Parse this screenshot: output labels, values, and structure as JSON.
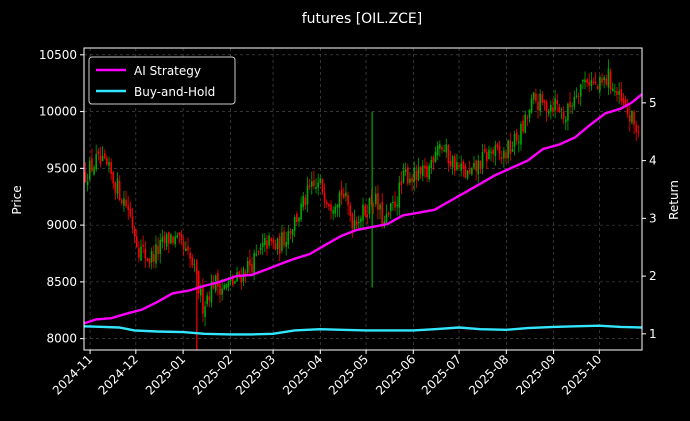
{
  "chart_data": {
    "type": "line",
    "title": "futures [OIL.ZCE]",
    "ylabel": "Price",
    "y2label": "Return",
    "ylim": [
      7900,
      10560
    ],
    "y2lim": [
      0.72,
      5.95
    ],
    "xlim": [
      "2024-10-28",
      "2025-10-29"
    ],
    "yticks": [
      8000,
      8500,
      9000,
      9500,
      10000,
      10500
    ],
    "y2ticks": [
      1,
      2,
      3,
      4,
      5
    ],
    "xticks": [
      "2024-11",
      "2024-12",
      "2025-01",
      "2025-02",
      "2025-03",
      "2025-04",
      "2025-05",
      "2025-06",
      "2025-07",
      "2025-08",
      "2025-09",
      "2025-10"
    ],
    "grid": true,
    "legend_position": "top-left",
    "colors": {
      "up": "#00aa00",
      "down": "#ff0000",
      "strategy": "#ff00ff",
      "buyhold": "#33e5ff",
      "background": "#000000"
    },
    "price_series": [
      {
        "date": "2024-10-29",
        "close": 9450
      },
      {
        "date": "2024-11-05",
        "close": 9560
      },
      {
        "date": "2024-11-12",
        "close": 9500
      },
      {
        "date": "2024-11-19",
        "close": 9330
      },
      {
        "date": "2024-11-26",
        "close": 9150
      },
      {
        "date": "2024-12-03",
        "close": 8800
      },
      {
        "date": "2024-12-10",
        "close": 8700
      },
      {
        "date": "2024-12-17",
        "close": 8800
      },
      {
        "date": "2024-12-24",
        "close": 8900
      },
      {
        "date": "2024-12-31",
        "close": 8800
      },
      {
        "date": "2025-01-07",
        "close": 8650
      },
      {
        "date": "2025-01-14",
        "close": 8300
      },
      {
        "date": "2025-01-21",
        "close": 8500
      },
      {
        "date": "2025-01-28",
        "close": 8450
      },
      {
        "date": "2025-02-04",
        "close": 8500
      },
      {
        "date": "2025-02-11",
        "close": 8620
      },
      {
        "date": "2025-02-18",
        "close": 8700
      },
      {
        "date": "2025-02-25",
        "close": 8850
      },
      {
        "date": "2025-03-04",
        "close": 8800
      },
      {
        "date": "2025-03-11",
        "close": 8950
      },
      {
        "date": "2025-03-18",
        "close": 9100
      },
      {
        "date": "2025-03-25",
        "close": 9300
      },
      {
        "date": "2025-04-01",
        "close": 9350
      },
      {
        "date": "2025-04-08",
        "close": 9200
      },
      {
        "date": "2025-04-15",
        "close": 9300
      },
      {
        "date": "2025-04-22",
        "close": 9050
      },
      {
        "date": "2025-04-29",
        "close": 9100
      },
      {
        "date": "2025-05-06",
        "close": 9250
      },
      {
        "date": "2025-05-13",
        "close": 9000
      },
      {
        "date": "2025-05-20",
        "close": 9200
      },
      {
        "date": "2025-05-27",
        "close": 9450
      },
      {
        "date": "2025-06-03",
        "close": 9420
      },
      {
        "date": "2025-06-10",
        "close": 9450
      },
      {
        "date": "2025-06-17",
        "close": 9750
      },
      {
        "date": "2025-06-24",
        "close": 9600
      },
      {
        "date": "2025-07-01",
        "close": 9500
      },
      {
        "date": "2025-07-08",
        "close": 9420
      },
      {
        "date": "2025-07-15",
        "close": 9550
      },
      {
        "date": "2025-07-22",
        "close": 9650
      },
      {
        "date": "2025-07-29",
        "close": 9600
      },
      {
        "date": "2025-08-05",
        "close": 9700
      },
      {
        "date": "2025-08-12",
        "close": 9850
      },
      {
        "date": "2025-08-19",
        "close": 10100
      },
      {
        "date": "2025-08-26",
        "close": 10050
      },
      {
        "date": "2025-09-02",
        "close": 10080
      },
      {
        "date": "2025-09-09",
        "close": 9950
      },
      {
        "date": "2025-09-16",
        "close": 10200
      },
      {
        "date": "2025-09-23",
        "close": 10300
      },
      {
        "date": "2025-09-30",
        "close": 10200
      },
      {
        "date": "2025-10-07",
        "close": 10300
      },
      {
        "date": "2025-10-14",
        "close": 10100
      },
      {
        "date": "2025-10-21",
        "close": 9950
      },
      {
        "date": "2025-10-28",
        "close": 9800
      }
    ],
    "series": [
      {
        "name": "AI Strategy",
        "axis": "right",
        "points": [
          [
            "2024-10-28",
            1.18
          ],
          [
            "2024-11-05",
            1.25
          ],
          [
            "2024-11-15",
            1.27
          ],
          [
            "2024-11-25",
            1.35
          ],
          [
            "2024-12-05",
            1.42
          ],
          [
            "2024-12-15",
            1.55
          ],
          [
            "2024-12-25",
            1.7
          ],
          [
            "2025-01-05",
            1.75
          ],
          [
            "2025-01-15",
            1.83
          ],
          [
            "2025-01-25",
            1.9
          ],
          [
            "2025-02-05",
            2.0
          ],
          [
            "2025-02-15",
            2.02
          ],
          [
            "2025-02-25",
            2.12
          ],
          [
            "2025-03-05",
            2.2
          ],
          [
            "2025-03-15",
            2.3
          ],
          [
            "2025-03-25",
            2.38
          ],
          [
            "2025-04-05",
            2.55
          ],
          [
            "2025-04-15",
            2.7
          ],
          [
            "2025-04-25",
            2.8
          ],
          [
            "2025-05-05",
            2.85
          ],
          [
            "2025-05-15",
            2.9
          ],
          [
            "2025-05-25",
            3.05
          ],
          [
            "2025-06-05",
            3.1
          ],
          [
            "2025-06-15",
            3.15
          ],
          [
            "2025-06-25",
            3.3
          ],
          [
            "2025-07-05",
            3.45
          ],
          [
            "2025-07-15",
            3.6
          ],
          [
            "2025-07-25",
            3.75
          ],
          [
            "2025-08-05",
            3.88
          ],
          [
            "2025-08-15",
            4.0
          ],
          [
            "2025-08-25",
            4.2
          ],
          [
            "2025-09-05",
            4.28
          ],
          [
            "2025-09-15",
            4.4
          ],
          [
            "2025-09-25",
            4.62
          ],
          [
            "2025-10-05",
            4.82
          ],
          [
            "2025-10-15",
            4.9
          ],
          [
            "2025-10-22",
            5.0
          ],
          [
            "2025-10-29",
            5.15
          ]
        ]
      },
      {
        "name": "Buy-and-Hold",
        "axis": "right",
        "points": [
          [
            "2024-10-28",
            1.13
          ],
          [
            "2024-11-10",
            1.12
          ],
          [
            "2024-11-20",
            1.11
          ],
          [
            "2024-11-30",
            1.06
          ],
          [
            "2024-12-15",
            1.04
          ],
          [
            "2025-01-01",
            1.03
          ],
          [
            "2025-01-15",
            1.0
          ],
          [
            "2025-02-01",
            0.99
          ],
          [
            "2025-02-15",
            0.99
          ],
          [
            "2025-03-01",
            1.0
          ],
          [
            "2025-03-15",
            1.06
          ],
          [
            "2025-04-01",
            1.08
          ],
          [
            "2025-04-15",
            1.07
          ],
          [
            "2025-05-01",
            1.06
          ],
          [
            "2025-05-15",
            1.06
          ],
          [
            "2025-06-01",
            1.06
          ],
          [
            "2025-06-15",
            1.08
          ],
          [
            "2025-07-01",
            1.11
          ],
          [
            "2025-07-15",
            1.08
          ],
          [
            "2025-08-01",
            1.07
          ],
          [
            "2025-08-15",
            1.1
          ],
          [
            "2025-09-01",
            1.12
          ],
          [
            "2025-09-15",
            1.13
          ],
          [
            "2025-10-01",
            1.14
          ],
          [
            "2025-10-15",
            1.12
          ],
          [
            "2025-10-29",
            1.11
          ]
        ]
      }
    ]
  }
}
